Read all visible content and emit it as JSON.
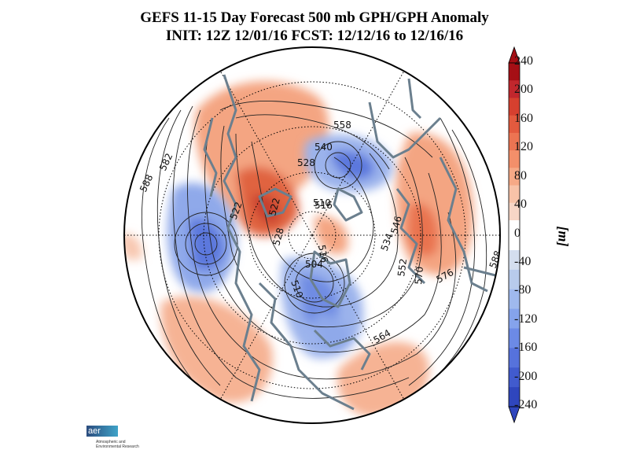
{
  "title": {
    "line1": "GEFS 11-15 Day Forecast 500 mb GPH/GPH Anomaly",
    "line2": "INIT: 12Z 12/01/16   FCST: 12/12/16 to 12/16/16"
  },
  "colorbar": {
    "unit": "[m]",
    "labels": [
      "240",
      "200",
      "160",
      "120",
      "80",
      "40",
      "0",
      "-40",
      "-80",
      "-120",
      "-160",
      "-200",
      "-240"
    ],
    "warm_colors": [
      "#a50f15",
      "#c1272d",
      "#d6402f",
      "#e35a3e",
      "#ec7452",
      "#f38f6a",
      "#f6a986",
      "#f8c3a8",
      "#f7d6c6"
    ],
    "cool_colors": [
      "#d4deee",
      "#b8cbec",
      "#9fb9ee",
      "#85a3ec",
      "#6c8ae6",
      "#5672dc",
      "#415bce",
      "#2f46bd"
    ]
  },
  "contours": {
    "labels": [
      "588",
      "582",
      "558",
      "540",
      "528",
      "522",
      "522",
      "516",
      "510",
      "528",
      "516",
      "504",
      "510",
      "534",
      "546",
      "552",
      "570",
      "576",
      "564",
      "588"
    ]
  },
  "logo": {
    "brand": "aer",
    "caption": "Atmospheric and Environmental Research"
  }
}
